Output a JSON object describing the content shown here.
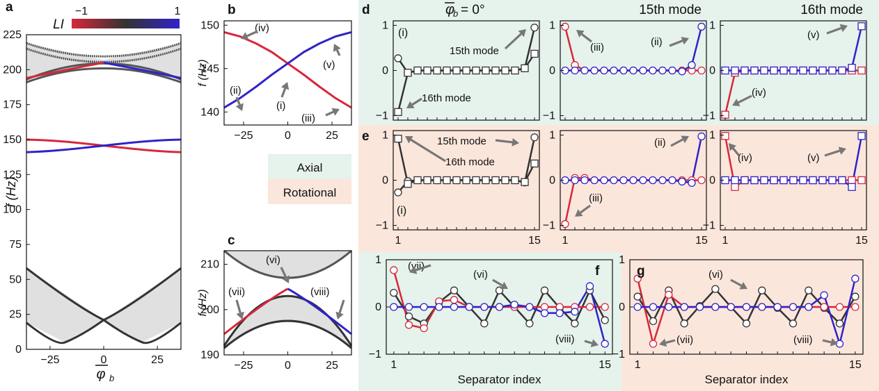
{
  "panel_letters": {
    "a": "a",
    "b": "b",
    "c": "c",
    "d": "d",
    "e": "e",
    "f": "f",
    "g": "g"
  },
  "colorbar": {
    "label": "LI",
    "min_label": "−1",
    "max_label": "1"
  },
  "header": {
    "col1": "φ_b = 0°",
    "col2": "15th mode",
    "col3": "16th mode"
  },
  "legend_boxes": {
    "axial": "Axial",
    "rotational": "Rotational"
  },
  "colors": {
    "red": "#d6283b",
    "blue": "#2f23c9",
    "black": "#333333",
    "band_fill": "#e0e0e0",
    "axial_bg": "#e6f2ec",
    "rotational_bg": "#fbe6dc"
  },
  "annotations": {
    "b_iv": "(iv)",
    "b_v": "(v)",
    "b_ii": "(ii)",
    "b_i": "(i)",
    "b_iii": "(iii)",
    "c_vi": "(vi)",
    "c_vii": "(vii)",
    "c_viii": "(viii)",
    "d_i": "(i)",
    "d_15": "15th mode",
    "d_16": "16th mode",
    "d_iii": "(iii)",
    "d_ii": "(ii)",
    "d_v": "(v)",
    "d_iv": "(iv)",
    "e_15": "15th mode",
    "e_16": "16th mode",
    "e_i": "(i)",
    "e_ii": "(ii)",
    "e_iii": "(iii)",
    "e_iv": "(iv)",
    "e_v": "(v)",
    "f_vii": "(vii)",
    "f_vi": "(vi)",
    "f_viii": "(viii)",
    "g_vi": "(vi)",
    "g_vii": "(vii)",
    "g_viii": "(viii)"
  },
  "chart_data": [
    {
      "id": "a",
      "type": "line",
      "xlabel": "φ_b",
      "ylabel": "f (Hz)",
      "xlim": [
        -36,
        36
      ],
      "ylim": [
        0,
        225
      ],
      "xticks": [
        -25,
        0,
        25
      ],
      "yticks": [
        0,
        25,
        50,
        75,
        100,
        125,
        150,
        175,
        200,
        225
      ],
      "series": [
        {
          "color": "red",
          "x": [
            -36,
            0,
            36
          ],
          "y": [
            150,
            146,
            141
          ]
        },
        {
          "color": "blue",
          "x": [
            -36,
            0,
            36
          ],
          "y": [
            141,
            146,
            150
          ]
        },
        {
          "color": "black",
          "x": [
            -36,
            -18,
            0,
            18,
            36
          ],
          "y": [
            58,
            32,
            5,
            32,
            58
          ]
        },
        {
          "color": "black",
          "x": [
            -36,
            -18,
            0,
            18,
            36
          ],
          "y": [
            19,
            5,
            21,
            5,
            19
          ]
        }
      ]
    },
    {
      "id": "b",
      "type": "line",
      "ylabel": "f (Hz)",
      "xlim": [
        -36,
        36
      ],
      "ylim": [
        138.5,
        150.5
      ],
      "xticks": [
        -25,
        0,
        25
      ],
      "yticks": [
        140,
        145,
        150
      ],
      "series": [
        {
          "color": "red",
          "x": [
            -36,
            -27,
            -18,
            -9,
            0,
            9,
            18,
            27,
            36
          ],
          "y": [
            149.2,
            148.7,
            147.9,
            146.9,
            145.6,
            144.3,
            142.9,
            141.6,
            140.5
          ]
        },
        {
          "color": "blue",
          "x": [
            -36,
            -27,
            -18,
            -9,
            0,
            9,
            18,
            27,
            36
          ],
          "y": [
            140.5,
            141.6,
            142.9,
            144.3,
            145.6,
            146.9,
            147.9,
            148.7,
            149.2
          ]
        }
      ]
    },
    {
      "id": "c",
      "type": "line",
      "ylabel": "f (Hz)",
      "xlim": [
        -36,
        36
      ],
      "ylim": [
        190,
        213
      ],
      "xticks": [
        -25,
        0,
        25
      ],
      "yticks": [
        190,
        200,
        210
      ],
      "series": [
        {
          "color": "red",
          "x": [
            -36,
            -27,
            -18,
            -9,
            0
          ],
          "y": [
            194.6,
            197.3,
            200,
            202.6,
            204.6
          ]
        },
        {
          "color": "blue",
          "x": [
            0,
            9,
            18,
            27,
            36
          ],
          "y": [
            204.6,
            202.6,
            200,
            197.3,
            194.6
          ]
        },
        {
          "color": "black",
          "x": [
            -36,
            -27,
            -18,
            -9,
            0,
            9,
            18,
            27,
            36
          ],
          "y": [
            192,
            195.6,
            199,
            202,
            203,
            202,
            199,
            195.6,
            192
          ]
        },
        {
          "color": "black",
          "x": [
            -36,
            -27,
            -18,
            -9,
            0,
            9,
            18,
            27,
            36
          ],
          "y": [
            191.5,
            194,
            196,
            197.2,
            197.5,
            197.2,
            196,
            194,
            191.5
          ]
        },
        {
          "color": "black",
          "x": [
            -36,
            -27,
            -18,
            -9,
            0,
            9,
            18,
            27,
            36
          ],
          "y": [
            213,
            212,
            210.5,
            208.5,
            206.5,
            208.5,
            210.5,
            212,
            213
          ]
        }
      ]
    },
    {
      "id": "d1",
      "type": "line",
      "xlim": [
        0.5,
        15.5
      ],
      "ylim": [
        -1.1,
        1.1
      ],
      "yticks": [
        -1,
        0,
        1
      ],
      "series": [
        {
          "name": "15th mode",
          "marker": "circle",
          "color": "black",
          "values": [
            0.27,
            -0.05,
            0,
            0,
            0,
            0,
            0,
            0,
            0,
            0,
            0,
            0,
            0,
            0.05,
            0.95
          ]
        },
        {
          "name": "16th mode",
          "marker": "square",
          "color": "black",
          "values": [
            -0.92,
            -0.05,
            0,
            0,
            0,
            0,
            0,
            0,
            0,
            0,
            0,
            0,
            0,
            0.05,
            0.37
          ]
        }
      ]
    },
    {
      "id": "d2",
      "type": "line",
      "xlim": [
        0.5,
        15.5
      ],
      "ylim": [
        -1.1,
        1.1
      ],
      "yticks": [
        -1,
        0,
        1
      ],
      "series": [
        {
          "color": "red",
          "marker": "circle",
          "values": [
            0.97,
            0.12,
            0,
            0,
            0,
            0,
            0,
            0,
            0,
            0,
            0,
            0,
            0,
            0,
            0
          ]
        },
        {
          "color": "blue",
          "marker": "circle",
          "values": [
            0,
            0,
            0,
            0,
            0,
            0,
            0,
            0,
            0,
            0,
            0,
            0,
            -0.02,
            0.12,
            0.97
          ]
        }
      ]
    },
    {
      "id": "d3",
      "type": "line",
      "xlim": [
        0.5,
        15.5
      ],
      "ylim": [
        -1.1,
        1.1
      ],
      "yticks": [
        -1,
        0,
        1
      ],
      "series": [
        {
          "color": "red",
          "marker": "square",
          "values": [
            -0.98,
            -0.05,
            0,
            0,
            0,
            0,
            0,
            0,
            0,
            0,
            0,
            0,
            0,
            0,
            0
          ]
        },
        {
          "color": "blue",
          "marker": "square",
          "values": [
            0,
            0,
            0,
            0,
            0,
            0,
            0,
            0,
            0,
            0,
            0,
            0,
            0,
            0.06,
            0.98
          ]
        }
      ]
    },
    {
      "id": "e1",
      "type": "line",
      "xlim": [
        0.5,
        15.5
      ],
      "ylim": [
        -1.1,
        1.1
      ],
      "yticks": [
        -1,
        0,
        1
      ],
      "series": [
        {
          "name": "15th mode",
          "marker": "circle",
          "color": "black",
          "values": [
            -0.27,
            -0.02,
            0,
            0,
            0,
            0,
            0,
            0,
            0,
            0,
            0,
            0,
            0,
            -0.05,
            0.95
          ]
        },
        {
          "name": "16th mode",
          "marker": "square",
          "color": "black",
          "values": [
            0.92,
            -0.08,
            0,
            0,
            0,
            0,
            0,
            0,
            0,
            0,
            0,
            0,
            0,
            -0.04,
            0.37
          ]
        }
      ]
    },
    {
      "id": "e2",
      "type": "line",
      "xlim": [
        0.5,
        15.5
      ],
      "ylim": [
        -1.1,
        1.1
      ],
      "yticks": [
        -1,
        0,
        1
      ],
      "series": [
        {
          "color": "red",
          "marker": "circle",
          "values": [
            -0.97,
            0.05,
            0.05,
            0,
            0,
            0,
            0,
            0,
            0,
            0,
            0,
            0,
            0,
            0,
            0
          ]
        },
        {
          "color": "blue",
          "marker": "circle",
          "values": [
            0,
            0,
            0,
            0,
            0,
            0,
            0,
            0,
            0,
            0,
            0,
            0,
            -0.03,
            -0.06,
            0.97
          ]
        }
      ]
    },
    {
      "id": "e3",
      "type": "line",
      "xlim": [
        0.5,
        15.5
      ],
      "ylim": [
        -1.1,
        1.1
      ],
      "yticks": [
        -1,
        0,
        1
      ],
      "series": [
        {
          "color": "red",
          "marker": "square",
          "values": [
            0.98,
            -0.15,
            0,
            0,
            0,
            0,
            0,
            0,
            0,
            0,
            0,
            0,
            0,
            0,
            0
          ]
        },
        {
          "color": "blue",
          "marker": "square",
          "values": [
            0,
            0,
            0,
            0,
            0,
            0,
            0,
            0,
            0,
            0,
            0,
            0,
            0,
            -0.15,
            0.98
          ]
        }
      ]
    },
    {
      "id": "f",
      "type": "line",
      "xlabel": "Separator index",
      "xlim": [
        0.5,
        15.5
      ],
      "ylim": [
        -1,
        1
      ],
      "yticks": [
        -1,
        0,
        1
      ],
      "series": [
        {
          "color": "black",
          "marker": "circle",
          "values": [
            0.3,
            -0.2,
            -0.35,
            0.1,
            0.35,
            0,
            -0.35,
            0.35,
            0,
            -0.35,
            0.35,
            -0.02,
            -0.35,
            0.35,
            -0.28
          ]
        },
        {
          "color": "red",
          "marker": "circle",
          "values": [
            0.78,
            -0.38,
            -0.45,
            0.12,
            0.15,
            0,
            0,
            0,
            0,
            0,
            0,
            0,
            0,
            0,
            0
          ]
        },
        {
          "color": "blue",
          "marker": "circle",
          "values": [
            0,
            0,
            0,
            0,
            0,
            0,
            0,
            0,
            0.05,
            0,
            -0.13,
            -0.13,
            -0.1,
            0.44,
            -0.78
          ]
        }
      ]
    },
    {
      "id": "g",
      "type": "line",
      "xlabel": "Separator index",
      "xlim": [
        0.5,
        15.5
      ],
      "ylim": [
        -1,
        1
      ],
      "yticks": [
        -1,
        0,
        1
      ],
      "series": [
        {
          "color": "black",
          "marker": "circle",
          "values": [
            0.22,
            -0.3,
            0.35,
            -0.35,
            0.02,
            0.38,
            0,
            -0.35,
            0.35,
            -0.02,
            -0.35,
            0.35,
            -0.02,
            -0.35,
            0.22
          ]
        },
        {
          "color": "red",
          "marker": "circle",
          "values": [
            0.6,
            -0.78,
            0.26,
            0,
            0,
            0,
            0,
            0,
            0,
            0,
            0,
            0,
            0,
            0,
            0
          ]
        },
        {
          "color": "blue",
          "marker": "circle",
          "values": [
            0,
            0,
            0,
            0,
            0,
            0,
            0,
            0,
            0,
            0,
            0,
            0,
            0.25,
            -0.78,
            0.6
          ]
        }
      ]
    }
  ]
}
